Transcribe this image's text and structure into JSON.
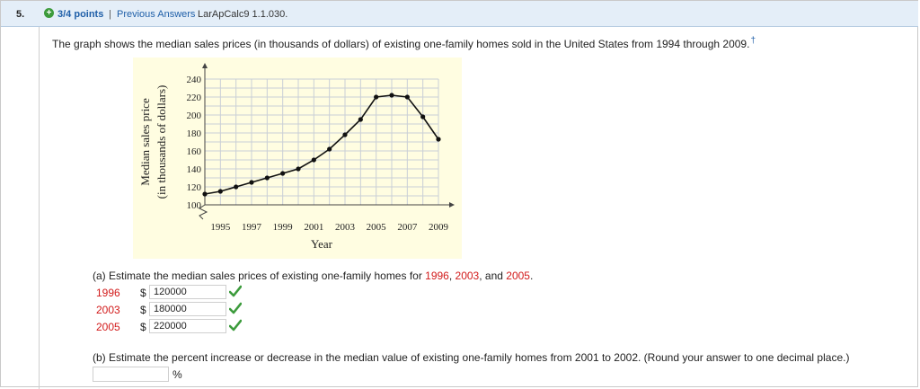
{
  "header": {
    "question_number": "5.",
    "points": "3/4 points",
    "separator": "|",
    "previous_answers": "Previous Answers",
    "question_id": "LarApCalc9 1.1.030."
  },
  "question": {
    "text": "The graph shows the median sales prices (in thousands of dollars) of existing one-family homes sold in the United States from 1994 through 2009.",
    "footnote_mark": "†"
  },
  "chart_data": {
    "type": "line",
    "ylabel_line1": "Median sales price",
    "ylabel_line2": "(in thousands of dollars)",
    "xlabel": "Year",
    "x_ticks": [
      "1995",
      "1997",
      "1999",
      "2001",
      "2003",
      "2005",
      "2007",
      "2009"
    ],
    "y_ticks": [
      "100",
      "120",
      "140",
      "160",
      "180",
      "200",
      "220",
      "240"
    ],
    "xlim": [
      1994,
      2009
    ],
    "ylim": [
      100,
      240
    ],
    "grid": true,
    "x": [
      1994,
      1995,
      1996,
      1997,
      1998,
      1999,
      2000,
      2001,
      2002,
      2003,
      2004,
      2005,
      2006,
      2007,
      2008,
      2009
    ],
    "y": [
      112,
      115,
      120,
      125,
      130,
      135,
      140,
      150,
      162,
      178,
      195,
      220,
      222,
      220,
      198,
      173
    ]
  },
  "part_a": {
    "prefix": "(a) Estimate the median sales prices of existing one-family homes for ",
    "year1": "1996",
    "mid1": ", ",
    "year2": "2003",
    "mid2": ", and ",
    "year3": "2005",
    "suffix": ".",
    "currency": "$",
    "answers": [
      {
        "year": "1996",
        "value": "120000"
      },
      {
        "year": "2003",
        "value": "180000"
      },
      {
        "year": "2005",
        "value": "220000"
      }
    ]
  },
  "part_b": {
    "text": "(b) Estimate the percent increase or decrease in the median value of existing one-family homes from 2001 to 2002. (Round your answer to one decimal place.)",
    "input_value": "",
    "unit": "%"
  },
  "colors": {
    "header_bg": "#e4eef8",
    "link": "#1f5fa8",
    "highlight": "#d21b1b",
    "check": "#3c9b3c",
    "graph_bg": "#fffde1"
  }
}
